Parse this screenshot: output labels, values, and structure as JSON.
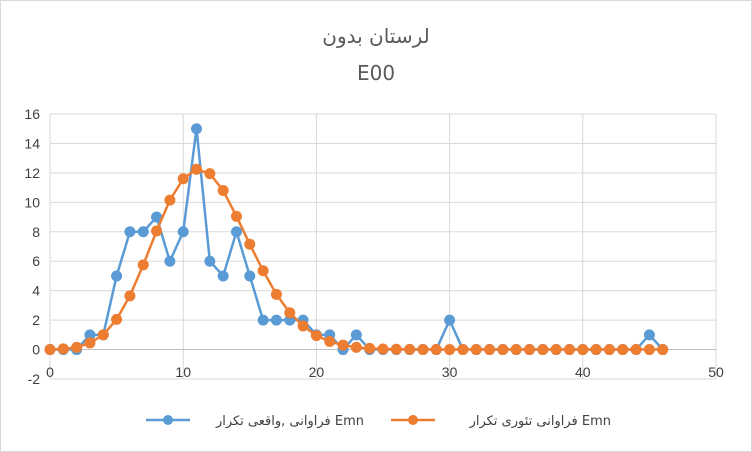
{
  "chart_data": {
    "type": "scatter",
    "title_line1": "لرستان بدون",
    "title_line2": "E00",
    "xlabel": "",
    "ylabel": "",
    "xlim": [
      0,
      50
    ],
    "ylim": [
      -2,
      16
    ],
    "x_ticks": [
      0,
      10,
      20,
      30,
      40,
      50
    ],
    "y_ticks": [
      -2,
      0,
      2,
      4,
      6,
      8,
      10,
      12,
      14,
      16
    ],
    "grid": true,
    "legend_position": "bottom",
    "series": [
      {
        "name": "فراوانی ,واقعی تکرار Emn",
        "color": "#5b9bd5",
        "x": [
          0,
          1,
          2,
          3,
          4,
          5,
          6,
          7,
          8,
          9,
          10,
          11,
          12,
          13,
          14,
          15,
          16,
          17,
          18,
          19,
          20,
          21,
          22,
          23,
          24,
          25,
          26,
          27,
          28,
          29,
          30,
          31,
          32,
          33,
          34,
          35,
          36,
          37,
          38,
          39,
          40,
          41,
          42,
          43,
          44,
          45,
          46
        ],
        "y": [
          0,
          0,
          0,
          1,
          1,
          5,
          8,
          8,
          9,
          6,
          8,
          15,
          6,
          5,
          8,
          5,
          2,
          2,
          2,
          2,
          1,
          1,
          0,
          1,
          0,
          0,
          0,
          0,
          0,
          0,
          2,
          0,
          0,
          0,
          0,
          0,
          0,
          0,
          0,
          0,
          0,
          0,
          0,
          0,
          0,
          1,
          0
        ]
      },
      {
        "name": "فراوانی تئوری تکرار Emn",
        "color": "#ed7d31",
        "x": [
          0,
          1,
          2,
          3,
          4,
          5,
          6,
          7,
          8,
          9,
          10,
          11,
          12,
          13,
          14,
          15,
          16,
          17,
          18,
          19,
          20,
          21,
          22,
          23,
          24,
          25,
          26,
          27,
          28,
          29,
          30,
          31,
          32,
          33,
          34,
          35,
          36,
          37,
          38,
          39,
          40,
          41,
          42,
          43,
          44,
          45,
          46
        ],
        "y": [
          0,
          0.05,
          0.15,
          0.45,
          1.0,
          2.05,
          3.65,
          5.75,
          8.05,
          10.15,
          11.6,
          12.25,
          11.95,
          10.8,
          9.05,
          7.15,
          5.35,
          3.75,
          2.5,
          1.6,
          0.95,
          0.55,
          0.3,
          0.15,
          0.08,
          0.04,
          0.02,
          0.01,
          0,
          0,
          0,
          0,
          0,
          0,
          0,
          0,
          0,
          0,
          0,
          0,
          0,
          0,
          0,
          0,
          0,
          0,
          0
        ]
      }
    ]
  }
}
